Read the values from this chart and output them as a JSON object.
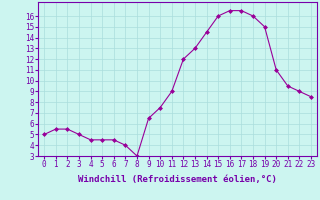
{
  "hours": [
    0,
    1,
    2,
    3,
    4,
    5,
    6,
    7,
    8,
    9,
    10,
    11,
    12,
    13,
    14,
    15,
    16,
    17,
    18,
    19,
    20,
    21,
    22,
    23
  ],
  "values": [
    5.0,
    5.5,
    5.5,
    5.0,
    4.5,
    4.5,
    4.5,
    4.0,
    3.0,
    6.5,
    7.5,
    9.0,
    12.0,
    13.0,
    14.5,
    16.0,
    16.5,
    16.5,
    16.0,
    15.0,
    11.0,
    9.5,
    9.0,
    8.5
  ],
  "line_color": "#990099",
  "marker": "D",
  "marker_size": 2,
  "bg_color": "#ccf5f0",
  "grid_color": "#aadddd",
  "xlabel": "Windchill (Refroidissement éolien,°C)",
  "ylim_min": 3,
  "ylim_max": 17,
  "xlim_min": -0.5,
  "xlim_max": 23.5,
  "yticks": [
    3,
    4,
    5,
    6,
    7,
    8,
    9,
    10,
    11,
    12,
    13,
    14,
    15,
    16
  ],
  "xticks": [
    0,
    1,
    2,
    3,
    4,
    5,
    6,
    7,
    8,
    9,
    10,
    11,
    12,
    13,
    14,
    15,
    16,
    17,
    18,
    19,
    20,
    21,
    22,
    23
  ],
  "tick_fontsize": 5.5,
  "xlabel_fontsize": 6.5,
  "spine_color": "#7700aa",
  "line_width": 0.8
}
